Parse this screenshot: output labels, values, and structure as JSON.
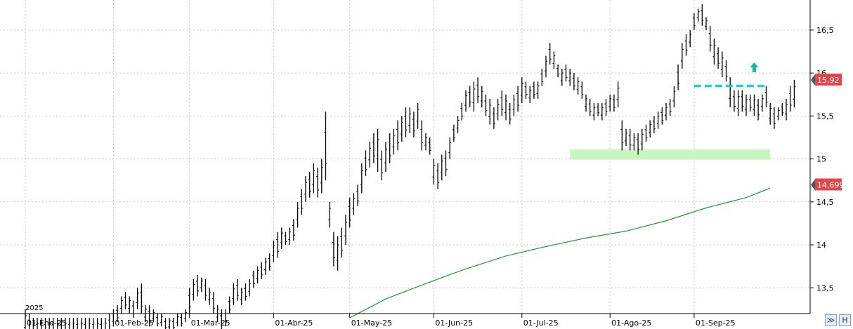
{
  "chart_data": {
    "type": "ohlc",
    "year_label": "2025",
    "ylim": [
      13.2,
      16.85
    ],
    "y_ticks": [
      "13,5",
      "14",
      "14,5",
      "15",
      "15,5",
      "16",
      "16,5"
    ],
    "y_tick_values": [
      13.5,
      14,
      14.5,
      15,
      15.5,
      16,
      16.5
    ],
    "x_ticks": [
      "01-Ene-25",
      "01-Feb-25",
      "01-Mar-25",
      "01-Abr-25",
      "01-May-25",
      "01-Jun-25",
      "01-Jul-25",
      "01-Ago-25",
      "01-Sep-25"
    ],
    "x_tick_index": [
      0,
      22,
      41,
      62,
      81,
      102,
      124,
      146,
      167
    ],
    "grid": true,
    "last_price": {
      "label": "15,92",
      "value": 15.92,
      "color": "#e0474c"
    },
    "ma_value": {
      "label": "14,699",
      "value": 14.699,
      "color": "#e0474c"
    },
    "moving_average": {
      "color": "#1a9a3a",
      "points": [
        [
          81,
          13.15
        ],
        [
          90,
          13.37
        ],
        [
          100,
          13.55
        ],
        [
          110,
          13.72
        ],
        [
          120,
          13.87
        ],
        [
          130,
          13.98
        ],
        [
          140,
          14.08
        ],
        [
          150,
          14.16
        ],
        [
          160,
          14.28
        ],
        [
          170,
          14.43
        ],
        [
          180,
          14.55
        ],
        [
          186,
          14.66
        ]
      ]
    },
    "support_zone": {
      "from_index": 136,
      "to_index": 186,
      "low": 14.99,
      "high": 15.11,
      "color": "#c8f5c0"
    },
    "resistance_line": {
      "from_index": 167,
      "to_index": 185,
      "value": 15.85,
      "color": "#1ecfdc"
    },
    "arrow": {
      "index": 182,
      "value": 16.05,
      "color": "#19b3a0"
    },
    "bars": [
      [
        12.95,
        13.25
      ],
      [
        12.95,
        13.2
      ],
      [
        12.9,
        13.15
      ],
      [
        12.9,
        13.15
      ],
      [
        12.9,
        13.15
      ],
      [
        12.9,
        13.15
      ],
      [
        12.9,
        13.15
      ],
      [
        12.9,
        13.15
      ],
      [
        12.9,
        13.15
      ],
      [
        12.9,
        13.15
      ],
      [
        12.9,
        13.15
      ],
      [
        12.9,
        13.15
      ],
      [
        12.9,
        13.15
      ],
      [
        12.9,
        13.15
      ],
      [
        12.9,
        13.15
      ],
      [
        12.9,
        13.15
      ],
      [
        12.9,
        13.15
      ],
      [
        12.9,
        13.15
      ],
      [
        12.9,
        13.15
      ],
      [
        12.9,
        13.15
      ],
      [
        12.9,
        13.15
      ],
      [
        12.95,
        13.2
      ],
      [
        13.05,
        13.25
      ],
      [
        13.1,
        13.3
      ],
      [
        13.2,
        13.4
      ],
      [
        13.25,
        13.45
      ],
      [
        13.2,
        13.4
      ],
      [
        13.15,
        13.35
      ],
      [
        13.25,
        13.5
      ],
      [
        13.2,
        13.55
      ],
      [
        13.1,
        13.3
      ],
      [
        13.05,
        13.3
      ],
      [
        13.1,
        13.25
      ],
      [
        13.05,
        13.2
      ],
      [
        13.05,
        13.2
      ],
      [
        13.0,
        13.15
      ],
      [
        13.0,
        13.15
      ],
      [
        13.0,
        13.15
      ],
      [
        13.05,
        13.2
      ],
      [
        13.05,
        13.2
      ],
      [
        13.1,
        13.25
      ],
      [
        13.2,
        13.5
      ],
      [
        13.35,
        13.6
      ],
      [
        13.4,
        13.65
      ],
      [
        13.45,
        13.62
      ],
      [
        13.35,
        13.6
      ],
      [
        13.3,
        13.5
      ],
      [
        13.2,
        13.45
      ],
      [
        13.1,
        13.3
      ],
      [
        13.0,
        13.25
      ],
      [
        13.05,
        13.25
      ],
      [
        13.2,
        13.4
      ],
      [
        13.3,
        13.55
      ],
      [
        13.35,
        13.6
      ],
      [
        13.3,
        13.5
      ],
      [
        13.35,
        13.55
      ],
      [
        13.4,
        13.6
      ],
      [
        13.5,
        13.7
      ],
      [
        13.55,
        13.75
      ],
      [
        13.6,
        13.8
      ],
      [
        13.65,
        13.85
      ],
      [
        13.7,
        13.9
      ],
      [
        13.8,
        14.05
      ],
      [
        13.85,
        14.15
      ],
      [
        13.95,
        14.2
      ],
      [
        14.0,
        14.15
      ],
      [
        14.0,
        14.2
      ],
      [
        14.05,
        14.3
      ],
      [
        14.2,
        14.5
      ],
      [
        14.35,
        14.65
      ],
      [
        14.5,
        14.8
      ],
      [
        14.55,
        14.85
      ],
      [
        14.6,
        14.95
      ],
      [
        14.55,
        14.9
      ],
      [
        14.6,
        15.0
      ],
      [
        14.75,
        15.55
      ],
      [
        14.2,
        14.5
      ],
      [
        13.75,
        14.15
      ],
      [
        13.7,
        14.1
      ],
      [
        13.85,
        14.2
      ],
      [
        14.0,
        14.35
      ],
      [
        14.2,
        14.55
      ],
      [
        14.35,
        14.6
      ],
      [
        14.45,
        14.7
      ],
      [
        14.6,
        14.95
      ],
      [
        14.8,
        15.1
      ],
      [
        14.9,
        15.2
      ],
      [
        14.95,
        15.3
      ],
      [
        14.85,
        15.35
      ],
      [
        14.75,
        15.1
      ],
      [
        14.85,
        15.2
      ],
      [
        14.95,
        15.3
      ],
      [
        15.05,
        15.35
      ],
      [
        15.1,
        15.45
      ],
      [
        15.2,
        15.5
      ],
      [
        15.25,
        15.6
      ],
      [
        15.3,
        15.6
      ],
      [
        15.25,
        15.55
      ],
      [
        15.35,
        15.65
      ],
      [
        15.1,
        15.45
      ],
      [
        15.1,
        15.3
      ],
      [
        15.05,
        15.25
      ],
      [
        14.7,
        15.0
      ],
      [
        14.65,
        14.95
      ],
      [
        14.75,
        15.05
      ],
      [
        14.8,
        15.1
      ],
      [
        15.0,
        15.25
      ],
      [
        15.2,
        15.4
      ],
      [
        15.3,
        15.5
      ],
      [
        15.45,
        15.65
      ],
      [
        15.55,
        15.8
      ],
      [
        15.6,
        15.85
      ],
      [
        15.55,
        15.9
      ],
      [
        15.65,
        15.95
      ],
      [
        15.6,
        15.85
      ],
      [
        15.5,
        15.75
      ],
      [
        15.4,
        15.7
      ],
      [
        15.35,
        15.6
      ],
      [
        15.45,
        15.7
      ],
      [
        15.5,
        15.8
      ],
      [
        15.45,
        15.75
      ],
      [
        15.4,
        15.65
      ],
      [
        15.5,
        15.75
      ],
      [
        15.55,
        15.85
      ],
      [
        15.65,
        15.95
      ],
      [
        15.7,
        15.9
      ],
      [
        15.65,
        15.85
      ],
      [
        15.7,
        15.9
      ],
      [
        15.7,
        15.9
      ],
      [
        15.85,
        16.05
      ],
      [
        15.95,
        16.2
      ],
      [
        16.1,
        16.35
      ],
      [
        16.05,
        16.25
      ],
      [
        15.95,
        16.1
      ],
      [
        15.85,
        16.05
      ],
      [
        15.9,
        16.1
      ],
      [
        15.85,
        16.05
      ],
      [
        15.8,
        16.0
      ],
      [
        15.75,
        15.95
      ],
      [
        15.7,
        15.9
      ],
      [
        15.55,
        15.75
      ],
      [
        15.5,
        15.7
      ],
      [
        15.45,
        15.65
      ],
      [
        15.5,
        15.65
      ],
      [
        15.45,
        15.65
      ],
      [
        15.5,
        15.7
      ],
      [
        15.55,
        15.75
      ],
      [
        15.55,
        15.75
      ],
      [
        15.6,
        15.9
      ]
    ],
    "bars_tail": [
      [
        15.1,
        15.45
      ],
      [
        15.15,
        15.35
      ],
      [
        15.1,
        15.35
      ],
      [
        15.1,
        15.3
      ],
      [
        15.05,
        15.3
      ],
      [
        15.1,
        15.35
      ],
      [
        15.2,
        15.4
      ],
      [
        15.25,
        15.45
      ],
      [
        15.3,
        15.5
      ],
      [
        15.35,
        15.55
      ],
      [
        15.4,
        15.6
      ],
      [
        15.45,
        15.65
      ],
      [
        15.5,
        15.7
      ],
      [
        15.6,
        15.85
      ],
      [
        15.8,
        16.1
      ],
      [
        16.05,
        16.35
      ],
      [
        16.2,
        16.45
      ],
      [
        16.3,
        16.5
      ],
      [
        16.5,
        16.7
      ],
      [
        16.6,
        16.75
      ],
      [
        16.55,
        16.8
      ],
      [
        16.5,
        16.65
      ],
      [
        16.25,
        16.55
      ],
      [
        16.1,
        16.4
      ],
      [
        16.05,
        16.3
      ],
      [
        15.95,
        16.25
      ],
      [
        15.9,
        16.15
      ],
      [
        15.6,
        15.95
      ],
      [
        15.55,
        15.8
      ],
      [
        15.5,
        15.8
      ],
      [
        15.55,
        15.8
      ],
      [
        15.5,
        15.75
      ],
      [
        15.55,
        15.75
      ],
      [
        15.5,
        15.75
      ],
      [
        15.45,
        15.7
      ],
      [
        15.55,
        15.75
      ],
      [
        15.6,
        15.85
      ],
      [
        15.4,
        15.65
      ],
      [
        15.35,
        15.6
      ],
      [
        15.45,
        15.6
      ],
      [
        15.5,
        15.65
      ],
      [
        15.45,
        15.7
      ],
      [
        15.55,
        15.85
      ],
      [
        15.6,
        15.92
      ]
    ]
  },
  "controls": {
    "auto_label": "≫",
    "h_label": "H"
  }
}
